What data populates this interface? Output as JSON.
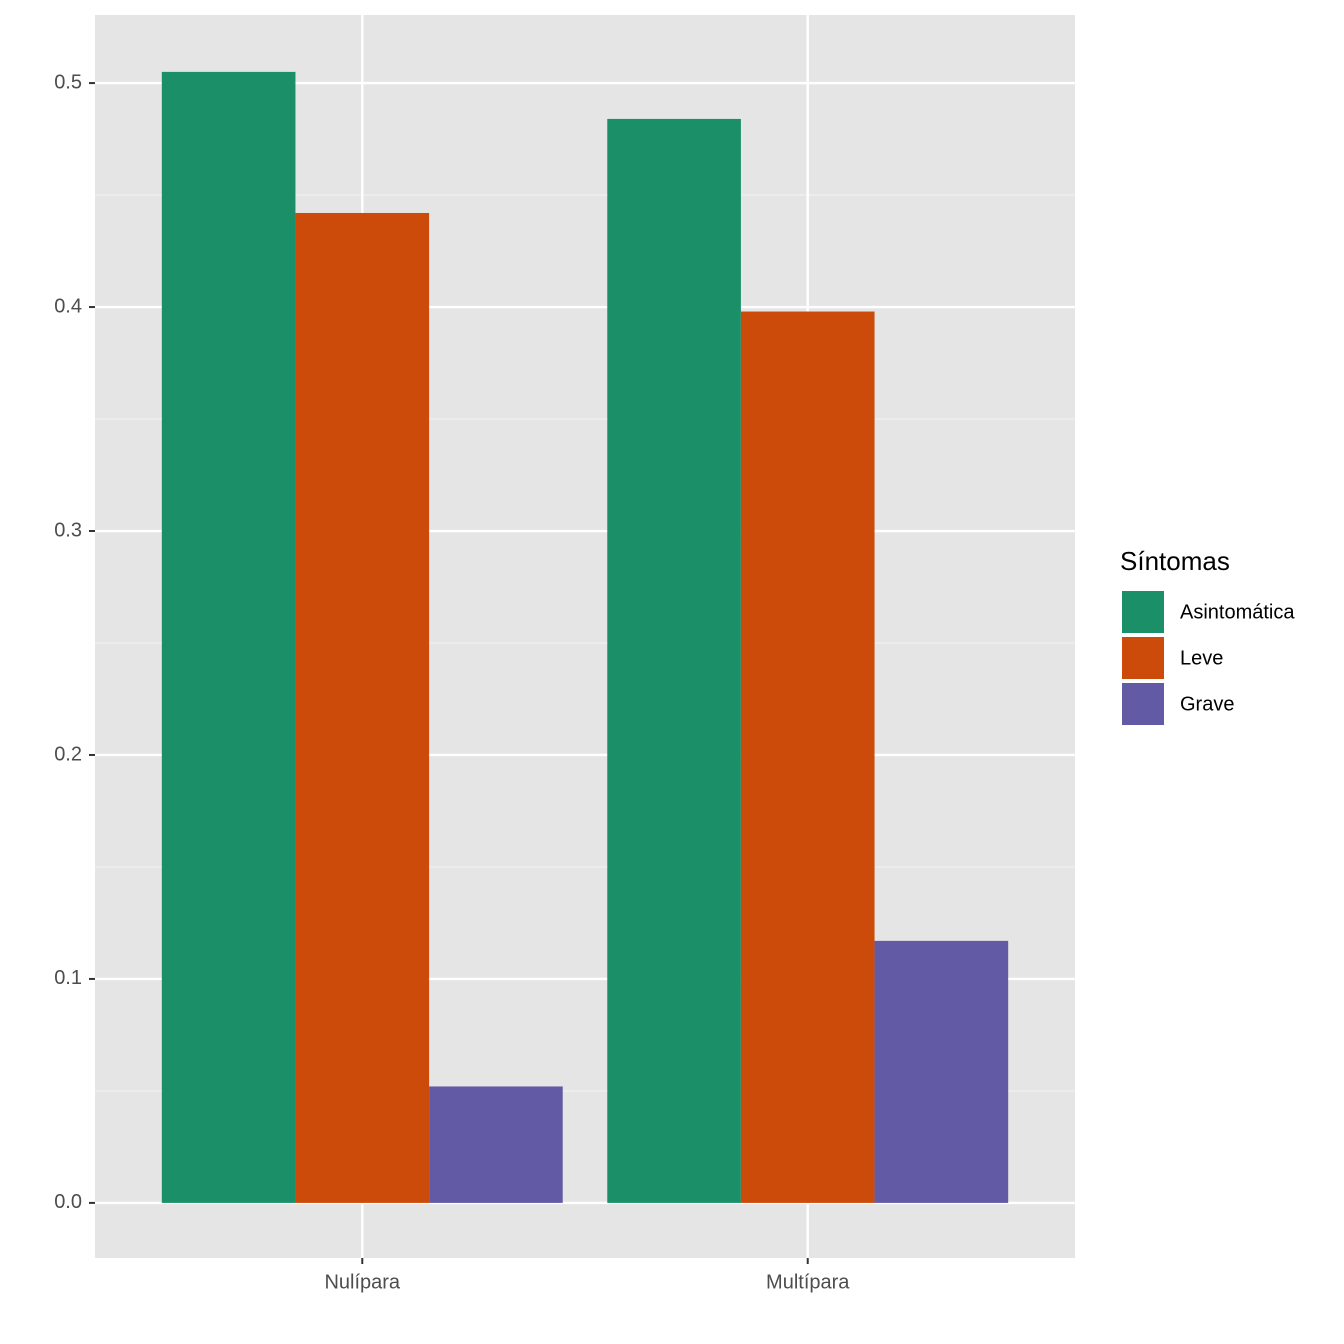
{
  "chart_data": {
    "type": "bar",
    "categories": [
      "Nulípara",
      "Multípara"
    ],
    "series": [
      {
        "name": "Asintomática",
        "color": "#1b9068",
        "values": [
          0.505,
          0.484
        ]
      },
      {
        "name": "Leve",
        "color": "#cc4b0a",
        "values": [
          0.442,
          0.398
        ]
      },
      {
        "name": "Grave",
        "color": "#635aa6",
        "values": [
          0.052,
          0.117
        ]
      }
    ],
    "legend_title": "Síntomas",
    "legend_position": "right",
    "ylim": [
      -0.0246,
      0.5304
    ],
    "yticks": [
      {
        "value": 0,
        "label": "0.0"
      },
      0.1,
      0.2,
      0.3,
      0.4,
      0.5
    ],
    "grid": true
  }
}
